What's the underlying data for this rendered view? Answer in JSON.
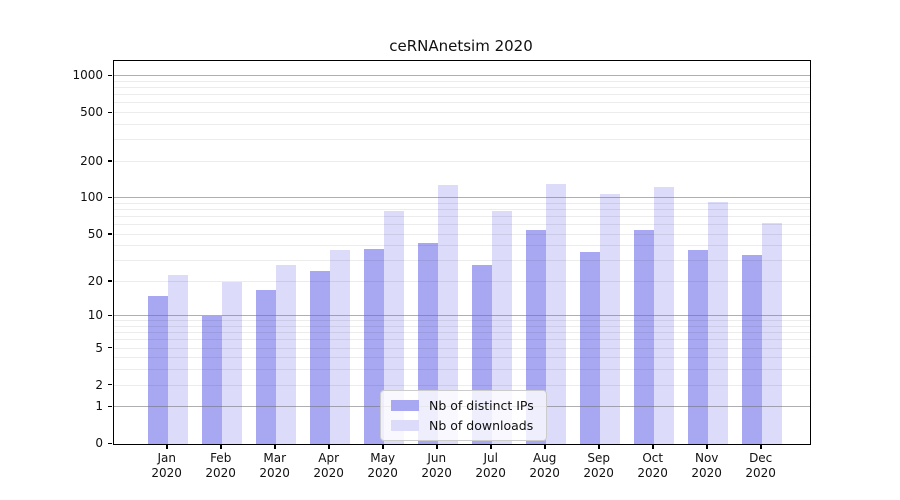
{
  "title": "ceRNAnetsim 2020",
  "chart_data": {
    "type": "bar",
    "title": "ceRNAnetsim 2020",
    "categories": [
      "Jan 2020",
      "Feb 2020",
      "Mar 2020",
      "Apr 2020",
      "May 2020",
      "Jun 2020",
      "Jul 2020",
      "Aug 2020",
      "Sep 2020",
      "Oct 2020",
      "Nov 2020",
      "Dec 2020"
    ],
    "x_tick_months": [
      "Jan",
      "Feb",
      "Mar",
      "Apr",
      "May",
      "Jun",
      "Jul",
      "Aug",
      "Sep",
      "Oct",
      "Nov",
      "Dec"
    ],
    "x_tick_year": "2020",
    "series": [
      {
        "name": "Nb of distinct IPs",
        "color": "#a8a8f2",
        "values": [
          15,
          10,
          17,
          25,
          38,
          43,
          28,
          55,
          36,
          55,
          37,
          34
        ]
      },
      {
        "name": "Nb of downloads",
        "color": "#dcdcfa",
        "values": [
          23,
          20,
          28,
          37,
          78,
          128,
          78,
          131,
          108,
          124,
          94,
          63
        ]
      }
    ],
    "y_scale": "log10(1+y)",
    "y_ticks": [
      0,
      1,
      2,
      5,
      10,
      20,
      50,
      100,
      200,
      500,
      1000
    ],
    "ylim": [
      0,
      1333
    ],
    "xlabel": "",
    "ylabel": "",
    "grid": "on",
    "grid_major_values": [
      1,
      10,
      100,
      1000
    ],
    "legend_position": "lower center"
  },
  "colors": {
    "bar_distinct_ips": "#a8a8f2",
    "bar_downloads": "#dcdcfa",
    "grid_major": "#6e6e73",
    "grid_minor": "#e8e8e8",
    "axis": "#000000",
    "background": "#ffffff"
  }
}
